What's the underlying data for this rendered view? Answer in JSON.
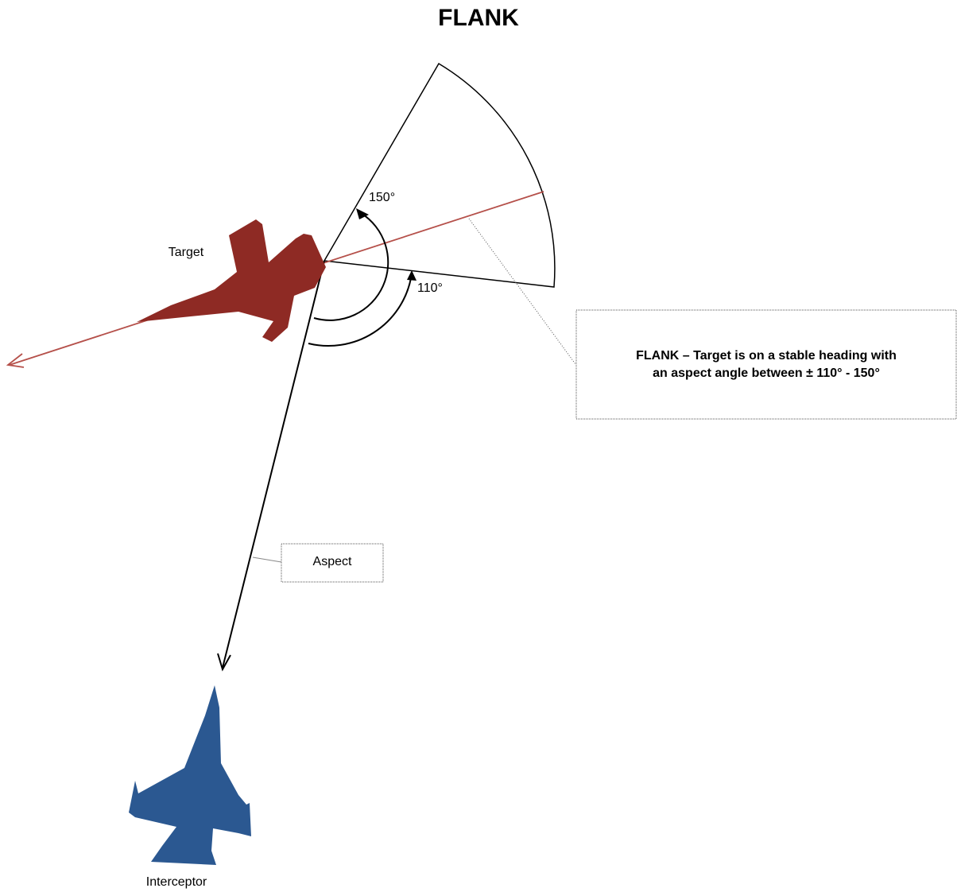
{
  "title": "FLANK",
  "labels": {
    "target": "Target",
    "interceptor": "Interceptor",
    "aspect": "Aspect"
  },
  "angles": {
    "upper": "150°",
    "lower": "110°"
  },
  "callout": {
    "lines": [
      "FLANK – Target is on a stable heading with",
      "an aspect angle between ± 110° - 150°"
    ]
  }
}
